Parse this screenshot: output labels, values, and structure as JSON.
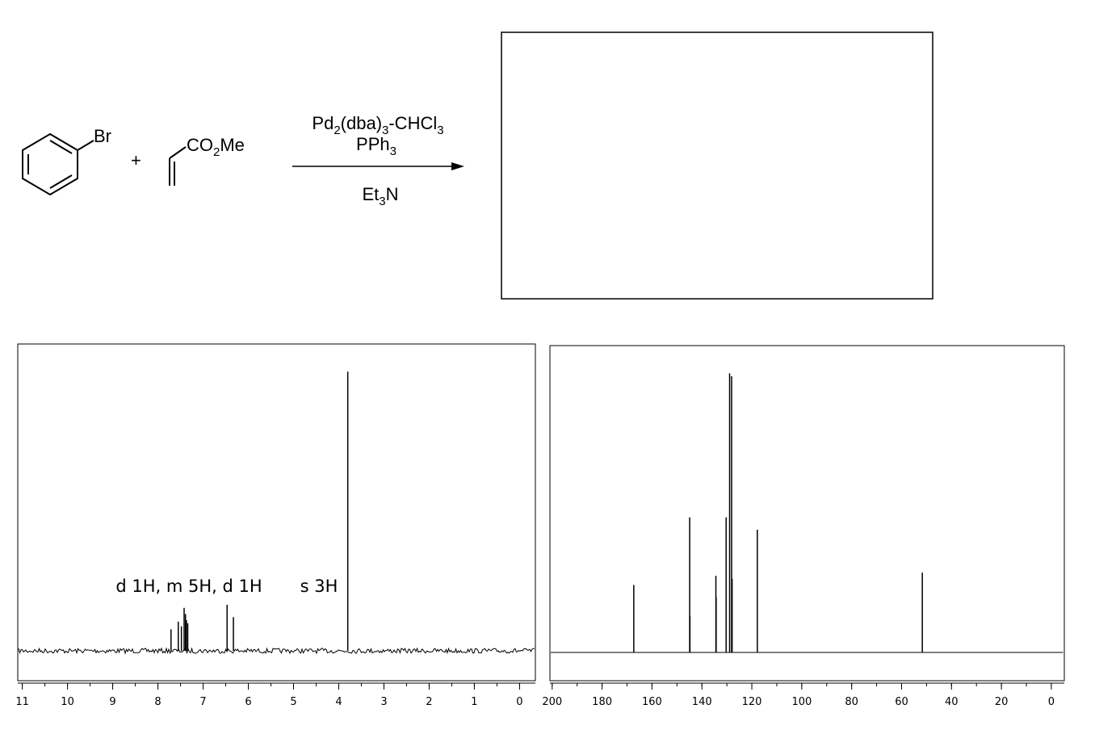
{
  "scheme": {
    "reactant1": "Br",
    "plus": "+",
    "reactant2": [
      "CO",
      "2",
      "Me"
    ],
    "catalyst": [
      "Pd",
      "2",
      "(dba)",
      "3",
      "-CHCl",
      "3"
    ],
    "ligand": [
      "PPh",
      "3"
    ],
    "base": [
      "Et",
      "3",
      "N"
    ]
  },
  "chart_data": [
    {
      "type": "spectrum",
      "color": "#000000",
      "annotations": [
        "d 1H, m 5H, d 1H",
        "s 3H"
      ],
      "xlim": [
        11.1,
        -0.35
      ],
      "xticks": [
        11,
        10,
        9,
        8,
        7,
        6,
        5,
        4,
        3,
        2,
        1,
        0
      ],
      "ylim": [
        0,
        100
      ],
      "x": [
        7.71,
        7.55,
        7.48,
        7.42,
        7.39,
        7.37,
        7.34,
        6.47,
        6.33,
        3.8
      ],
      "values": [
        7,
        9.5,
        8,
        14,
        12,
        10,
        9,
        15,
        11,
        91
      ]
    },
    {
      "type": "spectrum",
      "color": "#000000",
      "xlim": [
        200.9,
        -5.2
      ],
      "xticks": [
        200,
        180,
        160,
        140,
        120,
        100,
        80,
        60,
        40,
        20,
        0
      ],
      "ylim": [
        0,
        100
      ],
      "x": [
        167.3,
        144.9,
        144.8,
        134.4,
        134.3,
        130.3,
        128.9,
        128.1,
        127.9,
        117.8,
        51.7
      ],
      "values": [
        22,
        44,
        12,
        25,
        18,
        44,
        91,
        90,
        24,
        40,
        26
      ]
    }
  ]
}
